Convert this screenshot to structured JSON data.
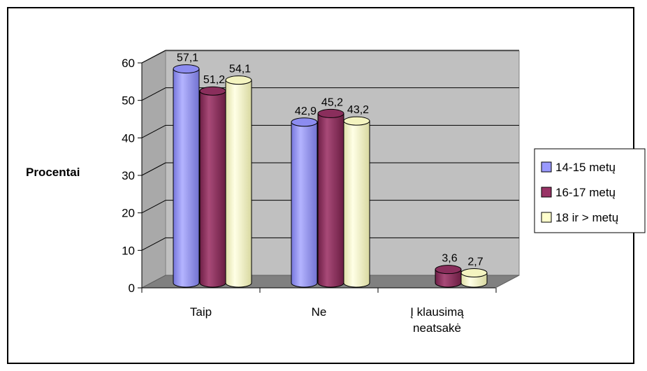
{
  "chart_data": {
    "type": "bar",
    "ylabel": "Procentai",
    "ylim": [
      0,
      60
    ],
    "yticks": [
      "0",
      "10",
      "20",
      "30",
      "40",
      "50",
      "60"
    ],
    "categories": [
      {
        "lines": [
          "Taip"
        ]
      },
      {
        "lines": [
          "Ne"
        ]
      },
      {
        "lines": [
          "Į klausimą",
          "neatsakė"
        ]
      }
    ],
    "series": [
      {
        "name": "14-15 metų",
        "color": "#9999ff",
        "values": [
          57.1,
          42.9,
          null
        ],
        "labels": [
          "57,1",
          "42,9",
          ""
        ]
      },
      {
        "name": "16-17 metų",
        "color": "#993366",
        "values": [
          51.2,
          45.2,
          3.6
        ],
        "labels": [
          "51,2",
          "45,2",
          "3,6"
        ]
      },
      {
        "name": "18 ir > metų",
        "color": "#ffffcc",
        "values": [
          54.1,
          43.2,
          2.7
        ],
        "labels": [
          "54,1",
          "43,2",
          "2,7"
        ]
      }
    ],
    "grid": true,
    "legend": "right",
    "three_d": true
  }
}
